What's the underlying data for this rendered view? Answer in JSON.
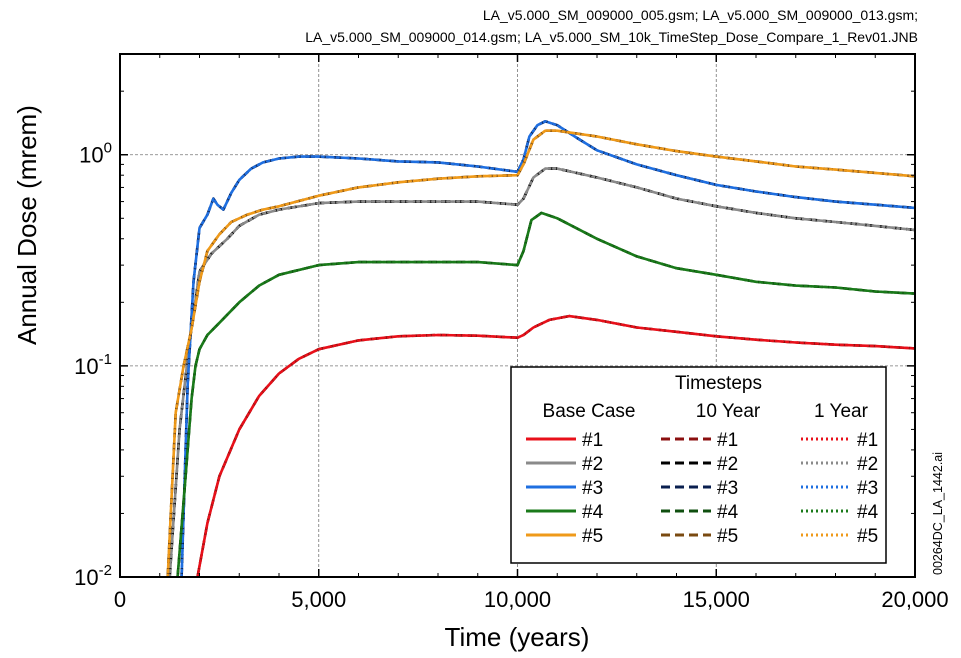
{
  "header": {
    "line1": "LA_v5.000_SM_009000_005.gsm; LA_v5.000_SM_009000_013.gsm;",
    "line2": "LA_v5.000_SM_009000_014.gsm; LA_v5.000_SM_10k_TimeStep_Dose_Compare_1_Rev01.JNB"
  },
  "side_id": "00264DC_LA_1442.ai",
  "chart_data": {
    "type": "line",
    "xlabel": "Time (years)",
    "ylabel": "Annual Dose (mrem)",
    "xlim": [
      0,
      20000
    ],
    "ylim": [
      0.01,
      3
    ],
    "yscale": "log",
    "xticks": [
      0,
      5000,
      10000,
      15000,
      20000
    ],
    "xtick_labels": [
      "0",
      "5,000",
      "10,000",
      "15,000",
      "20,000"
    ],
    "yticks": [
      {
        "value": 0.01,
        "base": "10",
        "exp": "-2"
      },
      {
        "value": 0.1,
        "base": "10",
        "exp": "-1"
      },
      {
        "value": 1,
        "base": "10",
        "exp": "0"
      }
    ],
    "grid": true,
    "legend": {
      "title": "Timesteps",
      "placement": "bottom-right",
      "columns": [
        "Base Case",
        "10 Year",
        "1 Year"
      ],
      "dash_styles": [
        "solid",
        "dashed",
        "dotted"
      ],
      "rows": [
        "#1",
        "#2",
        "#3",
        "#4",
        "#5"
      ]
    },
    "series": [
      {
        "name": "#1",
        "color": "#e8101a",
        "dark_color": "#8b0f0f",
        "x": [
          1950,
          2200,
          2500,
          3000,
          3500,
          4000,
          4500,
          5000,
          6000,
          7000,
          8000,
          9000,
          10000,
          10150,
          10400,
          10800,
          11300,
          12000,
          13000,
          14000,
          15000,
          16000,
          17000,
          18000,
          19000,
          20000
        ],
        "y": [
          0.01,
          0.018,
          0.03,
          0.05,
          0.072,
          0.092,
          0.108,
          0.12,
          0.132,
          0.138,
          0.14,
          0.139,
          0.136,
          0.14,
          0.152,
          0.165,
          0.172,
          0.165,
          0.152,
          0.145,
          0.138,
          0.133,
          0.129,
          0.126,
          0.124,
          0.121
        ]
      },
      {
        "name": "#2",
        "color": "#8a8a8a",
        "dark_color": "#000000",
        "x": [
          1250,
          1500,
          1750,
          2000,
          2300,
          2700,
          3000,
          3500,
          4000,
          5000,
          6000,
          7000,
          8000,
          9000,
          10000,
          10150,
          10400,
          10700,
          11000,
          12000,
          13000,
          14000,
          15000,
          16000,
          17000,
          18000,
          19000,
          20000
        ],
        "y": [
          0.01,
          0.05,
          0.13,
          0.28,
          0.34,
          0.4,
          0.46,
          0.52,
          0.55,
          0.59,
          0.6,
          0.6,
          0.6,
          0.6,
          0.58,
          0.62,
          0.78,
          0.86,
          0.86,
          0.78,
          0.7,
          0.62,
          0.57,
          0.53,
          0.5,
          0.48,
          0.46,
          0.44
        ]
      },
      {
        "name": "#3",
        "color": "#1f6fe0",
        "dark_color": "#0a1f4f",
        "x": [
          1550,
          1700,
          1850,
          2000,
          2200,
          2350,
          2450,
          2600,
          2800,
          3000,
          3300,
          3600,
          4000,
          4500,
          5000,
          6000,
          7000,
          8000,
          9000,
          10000,
          10150,
          10300,
          10500,
          10700,
          11000,
          11500,
          12000,
          13000,
          14000,
          15000,
          16000,
          17000,
          18000,
          19000,
          20000
        ],
        "y": [
          0.01,
          0.08,
          0.25,
          0.45,
          0.52,
          0.62,
          0.58,
          0.55,
          0.66,
          0.76,
          0.86,
          0.92,
          0.96,
          0.98,
          0.98,
          0.96,
          0.93,
          0.92,
          0.88,
          0.83,
          0.95,
          1.22,
          1.38,
          1.44,
          1.38,
          1.2,
          1.05,
          0.9,
          0.8,
          0.72,
          0.67,
          0.63,
          0.6,
          0.58,
          0.56
        ]
      },
      {
        "name": "#4",
        "color": "#1a7a1a",
        "dark_color": "#0f4f0f",
        "x": [
          1450,
          1650,
          1800,
          1900,
          2000,
          2200,
          2500,
          3000,
          3500,
          4000,
          5000,
          6000,
          7000,
          8000,
          9000,
          10000,
          10150,
          10350,
          10600,
          11000,
          12000,
          13000,
          14000,
          15000,
          16000,
          17000,
          18000,
          19000,
          20000
        ],
        "y": [
          0.01,
          0.03,
          0.07,
          0.1,
          0.12,
          0.14,
          0.16,
          0.2,
          0.24,
          0.27,
          0.3,
          0.31,
          0.31,
          0.31,
          0.31,
          0.3,
          0.35,
          0.49,
          0.53,
          0.5,
          0.4,
          0.33,
          0.29,
          0.27,
          0.25,
          0.24,
          0.235,
          0.225,
          0.22
        ]
      },
      {
        "name": "#5",
        "color": "#ef9a1a",
        "dark_color": "#7a4a10",
        "x": [
          1200,
          1400,
          1600,
          1800,
          2000,
          2200,
          2500,
          2800,
          3200,
          3600,
          4000,
          5000,
          6000,
          7000,
          8000,
          9000,
          10000,
          10150,
          10400,
          10700,
          11000,
          12000,
          13000,
          14000,
          15000,
          16000,
          17000,
          18000,
          19000,
          20000
        ],
        "y": [
          0.01,
          0.06,
          0.1,
          0.15,
          0.25,
          0.35,
          0.42,
          0.48,
          0.52,
          0.55,
          0.57,
          0.64,
          0.7,
          0.74,
          0.77,
          0.79,
          0.8,
          0.9,
          1.18,
          1.3,
          1.3,
          1.22,
          1.12,
          1.04,
          0.98,
          0.93,
          0.88,
          0.85,
          0.82,
          0.79
        ]
      }
    ]
  }
}
